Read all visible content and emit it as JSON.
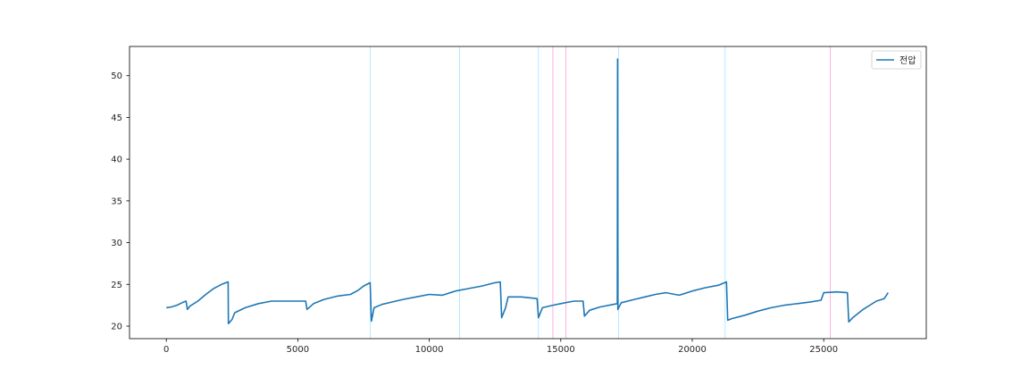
{
  "chart_data": {
    "type": "line",
    "title": "",
    "xlabel": "",
    "ylabel": "",
    "xlim": [
      -1400,
      28900
    ],
    "ylim": [
      18.5,
      53.5
    ],
    "xticks": [
      0,
      5000,
      10000,
      15000,
      20000,
      25000
    ],
    "yticks": [
      20,
      25,
      30,
      35,
      40,
      45,
      50
    ],
    "grid": false,
    "legend_position": "top-right",
    "colors": {
      "series": "#1f77b4",
      "cyan_marker": "#a6e3ff",
      "magenta_marker": "#ff99dd"
    },
    "series": [
      {
        "name": "전압",
        "color": "#1f77b4",
        "points": [
          [
            0,
            22.2
          ],
          [
            200,
            22.3
          ],
          [
            400,
            22.5
          ],
          [
            600,
            22.8
          ],
          [
            750,
            23.0
          ],
          [
            800,
            22.0
          ],
          [
            900,
            22.4
          ],
          [
            1200,
            23.0
          ],
          [
            1500,
            23.8
          ],
          [
            1800,
            24.5
          ],
          [
            2100,
            25.0
          ],
          [
            2350,
            25.3
          ],
          [
            2360,
            20.3
          ],
          [
            2500,
            20.8
          ],
          [
            2600,
            21.6
          ],
          [
            3000,
            22.2
          ],
          [
            3500,
            22.7
          ],
          [
            4000,
            23.0
          ],
          [
            4500,
            23.0
          ],
          [
            5000,
            23.0
          ],
          [
            5300,
            23.0
          ],
          [
            5350,
            22.0
          ],
          [
            5600,
            22.7
          ],
          [
            6000,
            23.2
          ],
          [
            6500,
            23.6
          ],
          [
            7000,
            23.8
          ],
          [
            7300,
            24.3
          ],
          [
            7500,
            24.8
          ],
          [
            7750,
            25.2
          ],
          [
            7800,
            20.6
          ],
          [
            7900,
            22.2
          ],
          [
            8200,
            22.6
          ],
          [
            8600,
            22.9
          ],
          [
            9000,
            23.2
          ],
          [
            9500,
            23.5
          ],
          [
            10000,
            23.8
          ],
          [
            10500,
            23.7
          ],
          [
            11000,
            24.2
          ],
          [
            11500,
            24.5
          ],
          [
            12000,
            24.8
          ],
          [
            12500,
            25.2
          ],
          [
            12700,
            25.3
          ],
          [
            12750,
            21.0
          ],
          [
            12900,
            22.2
          ],
          [
            13000,
            23.5
          ],
          [
            13500,
            23.5
          ],
          [
            14100,
            23.3
          ],
          [
            14150,
            21.0
          ],
          [
            14300,
            22.2
          ],
          [
            14700,
            22.5
          ],
          [
            15000,
            22.7
          ],
          [
            15500,
            23.0
          ],
          [
            15850,
            23.0
          ],
          [
            15900,
            21.2
          ],
          [
            16100,
            21.9
          ],
          [
            16500,
            22.3
          ],
          [
            17000,
            22.6
          ],
          [
            17150,
            22.7
          ],
          [
            17160,
            52.0
          ],
          [
            17170,
            22.0
          ],
          [
            17300,
            22.8
          ],
          [
            17800,
            23.2
          ],
          [
            18200,
            23.5
          ],
          [
            18600,
            23.8
          ],
          [
            19000,
            24.0
          ],
          [
            19500,
            23.7
          ],
          [
            20000,
            24.2
          ],
          [
            20500,
            24.6
          ],
          [
            21000,
            24.9
          ],
          [
            21300,
            25.3
          ],
          [
            21350,
            20.7
          ],
          [
            21500,
            20.9
          ],
          [
            22000,
            21.3
          ],
          [
            22500,
            21.8
          ],
          [
            23000,
            22.2
          ],
          [
            23500,
            22.5
          ],
          [
            24000,
            22.7
          ],
          [
            24500,
            22.9
          ],
          [
            24900,
            23.1
          ],
          [
            25000,
            24.0
          ],
          [
            25500,
            24.1
          ],
          [
            25900,
            24.0
          ],
          [
            25950,
            20.5
          ],
          [
            26100,
            21.0
          ],
          [
            26500,
            22.0
          ],
          [
            27000,
            23.0
          ],
          [
            27300,
            23.3
          ],
          [
            27450,
            24.0
          ]
        ]
      }
    ],
    "cyan_vertical_lines_x": [
      7750,
      11150,
      14150,
      17200,
      21250
    ],
    "magenta_vertical_lines_x": [
      14700,
      15200,
      25250
    ]
  }
}
